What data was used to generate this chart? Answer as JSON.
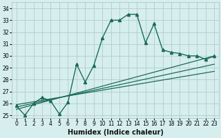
{
  "xlabel": "Humidex (Indice chaleur)",
  "background_color": "#d6eeee",
  "grid_color": "#b0cccc",
  "line_color": "#1a6b5a",
  "xlim": [
    -0.5,
    23.5
  ],
  "ylim": [
    24.8,
    34.5
  ],
  "yticks": [
    25,
    26,
    27,
    28,
    29,
    30,
    31,
    32,
    33,
    34
  ],
  "xticks": [
    0,
    1,
    2,
    3,
    4,
    5,
    6,
    7,
    8,
    9,
    10,
    11,
    12,
    13,
    14,
    15,
    16,
    17,
    18,
    19,
    20,
    21,
    22,
    23
  ],
  "main_line": [
    25.8,
    25.0,
    26.0,
    26.5,
    26.2,
    25.1,
    26.1,
    29.3,
    27.8,
    29.2,
    31.5,
    33.0,
    33.0,
    33.5,
    33.5,
    31.1,
    32.7,
    30.5,
    30.3,
    30.2,
    30.0,
    30.0,
    29.7,
    30.0
  ],
  "reg_line1_x": [
    0,
    23
  ],
  "reg_line1_y": [
    25.5,
    30.0
  ],
  "reg_line2_x": [
    0,
    23
  ],
  "reg_line2_y": [
    25.7,
    29.3
  ],
  "reg_line3_x": [
    0,
    23
  ],
  "reg_line3_y": [
    25.9,
    28.7
  ],
  "xlabel_fontsize": 7,
  "tick_fontsize": 5.5,
  "line_width": 1.0,
  "marker": "^",
  "markersize": 3
}
